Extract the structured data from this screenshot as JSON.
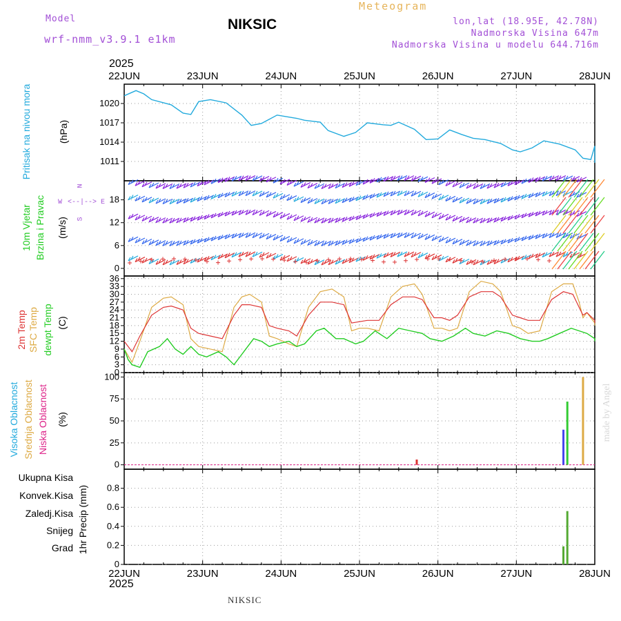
{
  "header": {
    "model_label": "Model",
    "model_name": "wrf-nmm_v3.9.1 e1km",
    "station": "NIKSIC",
    "meteogram": "Meteogram",
    "lonlat": "lon,lat (18.95E, 42.78N)",
    "elevation": "Nadmorska Visina 647m",
    "model_elevation": "Nadmorska Visina u modelu 644.716m",
    "year_top": "2025",
    "year_bottom": "2025",
    "footer": "NIKSIC",
    "credit": "made by Angel"
  },
  "axis_labels": {
    "pressure": "Pritisak na nivou mora",
    "pressure_unit": "(hPa)",
    "wind_1": "10m Vjetar",
    "wind_2": "Brzina i Pravac",
    "wind_unit": "(m/s)",
    "temp_1": "2m Temp",
    "temp_2": "SFC Temp",
    "temp_3": "dewpt Temp",
    "temp_unit": "(C)",
    "cloud_1": "Visoka Oblacnost",
    "cloud_2": "Srednja Oblacnost",
    "cloud_3": "Niska Oblacnost",
    "cloud_unit": "(%)",
    "precip_unit": "1hr Precip (mm)"
  },
  "compass": {
    "n": "N",
    "s": "S",
    "e": "E",
    "w": "W"
  },
  "precip_legend": [
    {
      "label": "Ukupna Kisa",
      "color": "#33cc33"
    },
    {
      "label": "Konvek.Kisa",
      "color": "#ee4444"
    },
    {
      "label": "Zaledj.Kisa",
      "color": "#ff8833"
    },
    {
      "label": "Snijeg",
      "color": "#4444ee"
    },
    {
      "label": "Grad",
      "color": "#22bbbb"
    }
  ],
  "colors": {
    "pressure": "#22aadd",
    "temp2m": "#dd3333",
    "sfc_temp": "#ddaa44",
    "dewpoint": "#22cc22",
    "wind_high": "#8822dd",
    "wind_mid": "#3366ee",
    "wind_low": "#22aadd",
    "precip": "#55aa33"
  },
  "chart_data": [
    {
      "type": "line",
      "panel": "pressure",
      "x_dates": [
        "22JUN",
        "23JUN",
        "24JUN",
        "25JUN",
        "26JUN",
        "27JUN",
        "28JUN"
      ],
      "ylim": [
        1008,
        1023
      ],
      "yticks": [
        1011,
        1014,
        1017,
        1020
      ],
      "series": [
        {
          "values": [
            [
              0,
              1021.2
            ],
            [
              0.15,
              1022
            ],
            [
              0.25,
              1021.5
            ],
            [
              0.35,
              1020.6
            ],
            [
              0.6,
              1019.8
            ],
            [
              0.75,
              1018.5
            ],
            [
              0.85,
              1018.3
            ],
            [
              0.95,
              1020.3
            ],
            [
              1.1,
              1020.6
            ],
            [
              1.3,
              1020.1
            ],
            [
              1.5,
              1018.2
            ],
            [
              1.62,
              1016.6
            ],
            [
              1.75,
              1016.9
            ],
            [
              1.95,
              1018.2
            ],
            [
              2.2,
              1017.7
            ],
            [
              2.3,
              1017.4
            ],
            [
              2.5,
              1017.1
            ],
            [
              2.6,
              1015.8
            ],
            [
              2.8,
              1014.9
            ],
            [
              2.95,
              1015.5
            ],
            [
              3.1,
              1017.0
            ],
            [
              3.3,
              1016.7
            ],
            [
              3.4,
              1016.6
            ],
            [
              3.5,
              1017.1
            ],
            [
              3.7,
              1016.0
            ],
            [
              3.85,
              1014.4
            ],
            [
              4.0,
              1014.5
            ],
            [
              4.15,
              1015.9
            ],
            [
              4.3,
              1015.2
            ],
            [
              4.45,
              1014.6
            ],
            [
              4.6,
              1014.4
            ],
            [
              4.8,
              1013.8
            ],
            [
              4.95,
              1012.8
            ],
            [
              5.05,
              1012.5
            ],
            [
              5.2,
              1013.1
            ],
            [
              5.35,
              1014.2
            ],
            [
              5.55,
              1013.7
            ],
            [
              5.75,
              1012.8
            ],
            [
              5.85,
              1011.5
            ],
            [
              5.95,
              1011.3
            ],
            [
              6.05,
              1013.4
            ],
            [
              6.15,
              1013.2
            ],
            [
              6.3,
              1013.4
            ],
            [
              6.45,
              1012.5
            ],
            [
              6.55,
              1011.4
            ],
            [
              6.6,
              1010.8
            ],
            [
              6.72,
              1011.8
            ],
            [
              6.8,
              1011.3
            ],
            [
              6.9,
              1012.2
            ],
            [
              6.95,
              1012.9
            ],
            [
              7,
              1013.1
            ],
            [
              7.05,
              1013.2
            ]
          ]
        }
      ]
    },
    {
      "type": "wind_barbs",
      "panel": "wind",
      "ylim": [
        -2,
        23
      ],
      "yticks": [
        0,
        6,
        12,
        18
      ],
      "x_dates": [
        "22JUN",
        "23JUN",
        "24JUN",
        "25JUN",
        "26JUN",
        "27JUN",
        "28JUN"
      ],
      "levels_ms": [
        22,
        18,
        13,
        7,
        2
      ],
      "row_colors": [
        "#8822dd",
        "#3366ee",
        "#8822dd",
        "#3366ee",
        "#dd3333"
      ]
    },
    {
      "type": "line",
      "panel": "temperature",
      "ylim": [
        0,
        37
      ],
      "yticks": [
        0,
        3,
        6,
        9,
        12,
        15,
        18,
        21,
        24,
        27,
        30,
        33,
        36
      ],
      "x_dates": [
        "22JUN",
        "23JUN",
        "24JUN",
        "25JUN",
        "26JUN",
        "27JUN",
        "28JUN"
      ],
      "series": [
        {
          "name": "2m Temp",
          "values": [
            [
              0,
              12
            ],
            [
              0.1,
              8
            ],
            [
              0.2,
              14
            ],
            [
              0.35,
              22
            ],
            [
              0.5,
              25
            ],
            [
              0.6,
              25.5
            ],
            [
              0.75,
              24
            ],
            [
              0.85,
              17
            ],
            [
              0.95,
              15
            ],
            [
              1.1,
              14
            ],
            [
              1.25,
              13
            ],
            [
              1.4,
              22
            ],
            [
              1.5,
              26
            ],
            [
              1.6,
              26
            ],
            [
              1.75,
              25
            ],
            [
              1.85,
              18
            ],
            [
              1.95,
              17
            ],
            [
              2.1,
              16
            ],
            [
              2.2,
              14
            ],
            [
              2.35,
              22
            ],
            [
              2.5,
              27
            ],
            [
              2.65,
              27
            ],
            [
              2.8,
              26
            ],
            [
              2.9,
              19
            ],
            [
              3.0,
              19.5
            ],
            [
              3.1,
              20
            ],
            [
              3.25,
              20
            ],
            [
              3.4,
              26
            ],
            [
              3.55,
              29
            ],
            [
              3.7,
              29
            ],
            [
              3.8,
              28
            ],
            [
              3.95,
              21
            ],
            [
              4.05,
              21
            ],
            [
              4.15,
              20
            ],
            [
              4.25,
              22
            ],
            [
              4.4,
              29
            ],
            [
              4.55,
              31
            ],
            [
              4.7,
              31
            ],
            [
              4.8,
              29
            ],
            [
              4.95,
              22
            ],
            [
              5.05,
              21
            ],
            [
              5.15,
              20
            ],
            [
              5.3,
              20
            ],
            [
              5.45,
              28
            ],
            [
              5.6,
              31
            ],
            [
              5.72,
              30
            ],
            [
              5.8,
              25
            ],
            [
              5.85,
              22
            ],
            [
              5.9,
              23
            ],
            [
              6.0,
              20
            ],
            [
              6.08,
              20
            ],
            [
              6.12,
              19
            ],
            [
              6.15,
              19
            ]
          ]
        },
        {
          "name": "SFC Temp",
          "values": [
            [
              0,
              9
            ],
            [
              0.1,
              4
            ],
            [
              0.2,
              12
            ],
            [
              0.35,
              25
            ],
            [
              0.5,
              28.5
            ],
            [
              0.6,
              29
            ],
            [
              0.75,
              26
            ],
            [
              0.85,
              13
            ],
            [
              0.95,
              10
            ],
            [
              1.1,
              9
            ],
            [
              1.25,
              8
            ],
            [
              1.4,
              25
            ],
            [
              1.5,
              29
            ],
            [
              1.6,
              30
            ],
            [
              1.75,
              27
            ],
            [
              1.85,
              14
            ],
            [
              1.95,
              13
            ],
            [
              2.1,
              11
            ],
            [
              2.2,
              10
            ],
            [
              2.35,
              25
            ],
            [
              2.5,
              31
            ],
            [
              2.65,
              32
            ],
            [
              2.8,
              29
            ],
            [
              2.9,
              16
            ],
            [
              3.0,
              17
            ],
            [
              3.1,
              17
            ],
            [
              3.25,
              16
            ],
            [
              3.4,
              29
            ],
            [
              3.55,
              33
            ],
            [
              3.7,
              34
            ],
            [
              3.8,
              30
            ],
            [
              3.95,
              17
            ],
            [
              4.05,
              17
            ],
            [
              4.15,
              16
            ],
            [
              4.25,
              17
            ],
            [
              4.4,
              31
            ],
            [
              4.55,
              35
            ],
            [
              4.7,
              34
            ],
            [
              4.8,
              31
            ],
            [
              4.95,
              18
            ],
            [
              5.05,
              17
            ],
            [
              5.15,
              15
            ],
            [
              5.3,
              16
            ],
            [
              5.45,
              31
            ],
            [
              5.6,
              34
            ],
            [
              5.72,
              34
            ],
            [
              5.8,
              27
            ],
            [
              5.85,
              21
            ],
            [
              5.9,
              23
            ],
            [
              6.0,
              19
            ],
            [
              6.08,
              18
            ],
            [
              6.12,
              18
            ],
            [
              6.15,
              18
            ]
          ]
        },
        {
          "name": "dewpt Temp",
          "values": [
            [
              0,
              9
            ],
            [
              0.05,
              5
            ],
            [
              0.1,
              3
            ],
            [
              0.2,
              2
            ],
            [
              0.3,
              8
            ],
            [
              0.45,
              10
            ],
            [
              0.55,
              13
            ],
            [
              0.65,
              9
            ],
            [
              0.75,
              7
            ],
            [
              0.85,
              10
            ],
            [
              0.95,
              7
            ],
            [
              1.05,
              6
            ],
            [
              1.2,
              8
            ],
            [
              1.3,
              6
            ],
            [
              1.4,
              3
            ],
            [
              1.5,
              7
            ],
            [
              1.65,
              13
            ],
            [
              1.75,
              12
            ],
            [
              1.85,
              10
            ],
            [
              1.95,
              11
            ],
            [
              2.1,
              12
            ],
            [
              2.2,
              10
            ],
            [
              2.3,
              11
            ],
            [
              2.45,
              16
            ],
            [
              2.55,
              17
            ],
            [
              2.7,
              13
            ],
            [
              2.8,
              13
            ],
            [
              2.95,
              11
            ],
            [
              3.05,
              12
            ],
            [
              3.2,
              16
            ],
            [
              3.35,
              13
            ],
            [
              3.5,
              17
            ],
            [
              3.65,
              16
            ],
            [
              3.8,
              15
            ],
            [
              3.9,
              13
            ],
            [
              4.05,
              12
            ],
            [
              4.2,
              14
            ],
            [
              4.35,
              17
            ],
            [
              4.45,
              15
            ],
            [
              4.6,
              14
            ],
            [
              4.75,
              16
            ],
            [
              4.9,
              15
            ],
            [
              5.05,
              13
            ],
            [
              5.2,
              12
            ],
            [
              5.3,
              12
            ],
            [
              5.4,
              13
            ],
            [
              5.55,
              15
            ],
            [
              5.7,
              17
            ],
            [
              5.8,
              16
            ],
            [
              5.9,
              15
            ],
            [
              6.0,
              13
            ],
            [
              6.1,
              12
            ],
            [
              6.15,
              12
            ]
          ]
        }
      ]
    },
    {
      "type": "bar",
      "panel": "cloud",
      "ylim": [
        -5,
        105
      ],
      "yticks": [
        0,
        25,
        50,
        75,
        100
      ],
      "x_dates": [
        "22JUN",
        "23JUN",
        "24JUN",
        "25JUN",
        "26JUN",
        "27JUN",
        "28JUN"
      ],
      "series": [
        {
          "name": "Niska Oblacnost",
          "values": [
            [
              3.73,
              6
            ]
          ]
        },
        {
          "name": "Visoka Oblacnost",
          "values": [
            [
              5.6,
              40
            ]
          ]
        },
        {
          "name": "Srednja Oblacnost",
          "values": [
            [
              5.85,
              100
            ]
          ]
        },
        {
          "name": "Ukupna",
          "values": [
            [
              5.65,
              72
            ]
          ]
        }
      ]
    },
    {
      "type": "bar",
      "panel": "precip",
      "ylim": [
        0,
        1.0
      ],
      "yticks": [
        0,
        0.2,
        0.4,
        0.6,
        0.8
      ],
      "x_dates": [
        "22JUN",
        "23JUN",
        "24JUN",
        "25JUN",
        "26JUN",
        "27JUN",
        "28JUN"
      ],
      "series": [
        {
          "name": "Ukupna Kisa",
          "values": [
            [
              5.6,
              0.19
            ],
            [
              5.65,
              0.56
            ]
          ]
        }
      ]
    }
  ]
}
